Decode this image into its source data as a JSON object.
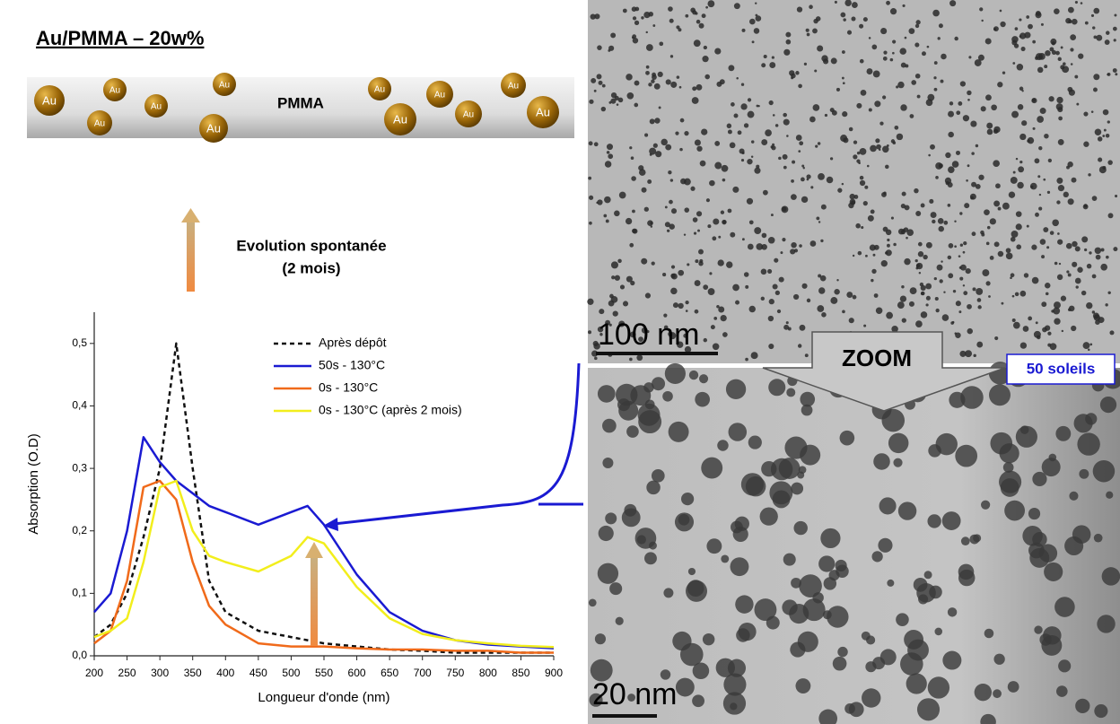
{
  "header": {
    "title": "Au/PMMA – 20w%"
  },
  "diagram": {
    "matrix": "PMMA",
    "particles": [
      "Au",
      "Au",
      "Au",
      "Au",
      "Au",
      "Au",
      "Au",
      "Au",
      "Au",
      "Au",
      "Au",
      "Au"
    ],
    "arrow_label": [
      "Evolution spontanée",
      "(2 mois)"
    ]
  },
  "chart_data": {
    "type": "line",
    "x_label": "Longueur d'onde (nm)",
    "y_label": "Absorption (O.D)",
    "x": [
      200,
      225,
      250,
      275,
      300,
      325,
      350,
      375,
      400,
      450,
      500,
      525,
      550,
      600,
      650,
      700,
      750,
      800,
      850,
      900
    ],
    "xlim": [
      200,
      900
    ],
    "xticks": [
      200,
      250,
      300,
      350,
      400,
      450,
      500,
      550,
      600,
      650,
      700,
      750,
      800,
      850,
      900
    ],
    "ylim": [
      0,
      0.55
    ],
    "yticks": [
      {
        "value": 0,
        "label": "0,0"
      },
      {
        "value": 0.1,
        "label": "0,1"
      },
      {
        "value": 0.2,
        "label": "0,2"
      },
      {
        "value": 0.3,
        "label": "0,3"
      },
      {
        "value": 0.4,
        "label": "0,4"
      },
      {
        "value": 0.5,
        "label": "0,5"
      }
    ],
    "series": [
      {
        "name": "Après dépôt",
        "color": "#111111",
        "dashed": true,
        "values": [
          0.03,
          0.05,
          0.1,
          0.19,
          0.3,
          0.5,
          0.3,
          0.12,
          0.07,
          0.04,
          0.03,
          0.025,
          0.02,
          0.015,
          0.01,
          0.008,
          0.005,
          0.005,
          0.005,
          0.005
        ]
      },
      {
        "name": "50s - 130°C",
        "color": "#1a1ad2",
        "dashed": false,
        "values": [
          0.07,
          0.1,
          0.2,
          0.35,
          0.31,
          0.28,
          0.26,
          0.24,
          0.23,
          0.21,
          0.23,
          0.24,
          0.21,
          0.13,
          0.07,
          0.04,
          0.025,
          0.018,
          0.015,
          0.012
        ]
      },
      {
        "name": "0s - 130°C",
        "color": "#f06a1a",
        "dashed": false,
        "values": [
          0.02,
          0.04,
          0.12,
          0.27,
          0.28,
          0.25,
          0.15,
          0.08,
          0.05,
          0.02,
          0.015,
          0.015,
          0.015,
          0.012,
          0.01,
          0.01,
          0.008,
          0.008,
          0.005,
          0.005
        ]
      },
      {
        "name": "0s - 130°C (après 2 mois)",
        "color": "#f2ee1c",
        "dashed": false,
        "values": [
          0.03,
          0.04,
          0.06,
          0.15,
          0.27,
          0.28,
          0.2,
          0.16,
          0.15,
          0.135,
          0.16,
          0.19,
          0.18,
          0.11,
          0.06,
          0.035,
          0.025,
          0.02,
          0.016,
          0.014
        ]
      }
    ]
  },
  "images": {
    "top_scale": "100 nm",
    "zoom": "ZOOM",
    "badge": "50 soleils",
    "bottom_scale": "20 nm"
  }
}
